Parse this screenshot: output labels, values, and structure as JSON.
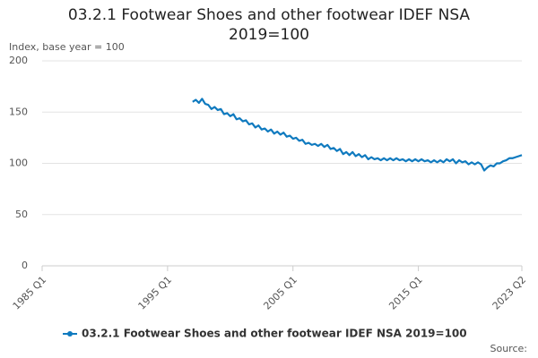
{
  "chart_data": {
    "type": "line",
    "title": "03.2.1 Footwear Shoes and other footwear IDEF NSA 2019=100",
    "y_label": "Index, base year = 100",
    "source": "Source:",
    "ylim": [
      0,
      200
    ],
    "yticks": [
      0,
      50,
      100,
      150,
      200
    ],
    "grid": true,
    "categories": [
      "1985 Q1",
      null,
      null,
      null,
      null,
      null,
      null,
      null,
      null,
      null,
      null,
      null,
      null,
      null,
      null,
      null,
      null,
      null,
      null,
      null,
      null,
      null,
      null,
      null,
      null,
      null,
      null,
      null,
      null,
      null,
      null,
      null,
      null,
      null,
      null,
      null,
      null,
      null,
      null,
      null,
      "1995 Q1",
      null,
      null,
      null,
      null,
      null,
      null,
      null,
      null,
      null,
      null,
      null,
      null,
      null,
      null,
      null,
      null,
      null,
      null,
      null,
      null,
      null,
      null,
      null,
      null,
      null,
      null,
      null,
      null,
      null,
      null,
      null,
      null,
      null,
      null,
      null,
      null,
      null,
      null,
      null,
      "2005 Q1",
      null,
      null,
      null,
      null,
      null,
      null,
      null,
      null,
      null,
      null,
      null,
      null,
      null,
      null,
      null,
      null,
      null,
      null,
      null,
      null,
      null,
      null,
      null,
      null,
      null,
      null,
      null,
      null,
      null,
      null,
      null,
      null,
      null,
      null,
      null,
      null,
      null,
      null,
      null,
      "2015 Q1",
      null,
      null,
      null,
      null,
      null,
      null,
      null,
      null,
      null,
      null,
      null,
      null,
      null,
      null,
      null,
      null,
      null,
      null,
      null,
      null,
      null,
      null,
      null,
      null,
      null,
      null,
      null,
      null,
      null,
      null,
      null,
      null,
      "2023 Q2"
    ],
    "series": [
      {
        "name": "03.2.1 Footwear Shoes and other footwear IDEF NSA 2019=100",
        "color": "#0f7abf",
        "values": [
          null,
          null,
          null,
          null,
          null,
          null,
          null,
          null,
          null,
          null,
          null,
          null,
          null,
          null,
          null,
          null,
          null,
          null,
          null,
          null,
          null,
          null,
          null,
          null,
          null,
          null,
          null,
          null,
          null,
          null,
          null,
          null,
          null,
          null,
          null,
          null,
          null,
          null,
          null,
          null,
          null,
          null,
          null,
          null,
          null,
          null,
          null,
          null,
          160,
          162,
          159,
          163,
          158,
          157,
          153,
          155,
          152,
          153,
          148,
          149,
          146,
          148,
          143,
          144,
          141,
          142,
          138,
          139,
          135,
          137,
          133,
          134,
          131,
          133,
          129,
          131,
          128,
          130,
          126,
          127,
          124,
          125,
          122,
          123,
          119,
          120,
          118,
          119,
          117,
          119,
          116,
          118,
          114,
          115,
          112,
          114,
          109,
          111,
          108,
          111,
          107,
          109,
          106,
          108,
          104,
          106,
          104,
          105,
          103,
          105,
          103,
          105,
          103,
          105,
          103,
          104,
          102,
          104,
          102,
          104,
          102,
          104,
          102,
          103,
          101,
          103,
          101,
          103,
          101,
          104,
          102,
          104,
          100,
          103,
          101,
          102,
          99,
          101,
          99,
          101,
          99,
          93,
          96,
          98,
          97,
          100,
          100,
          102,
          103,
          105,
          105,
          106,
          107,
          108
        ]
      }
    ]
  }
}
